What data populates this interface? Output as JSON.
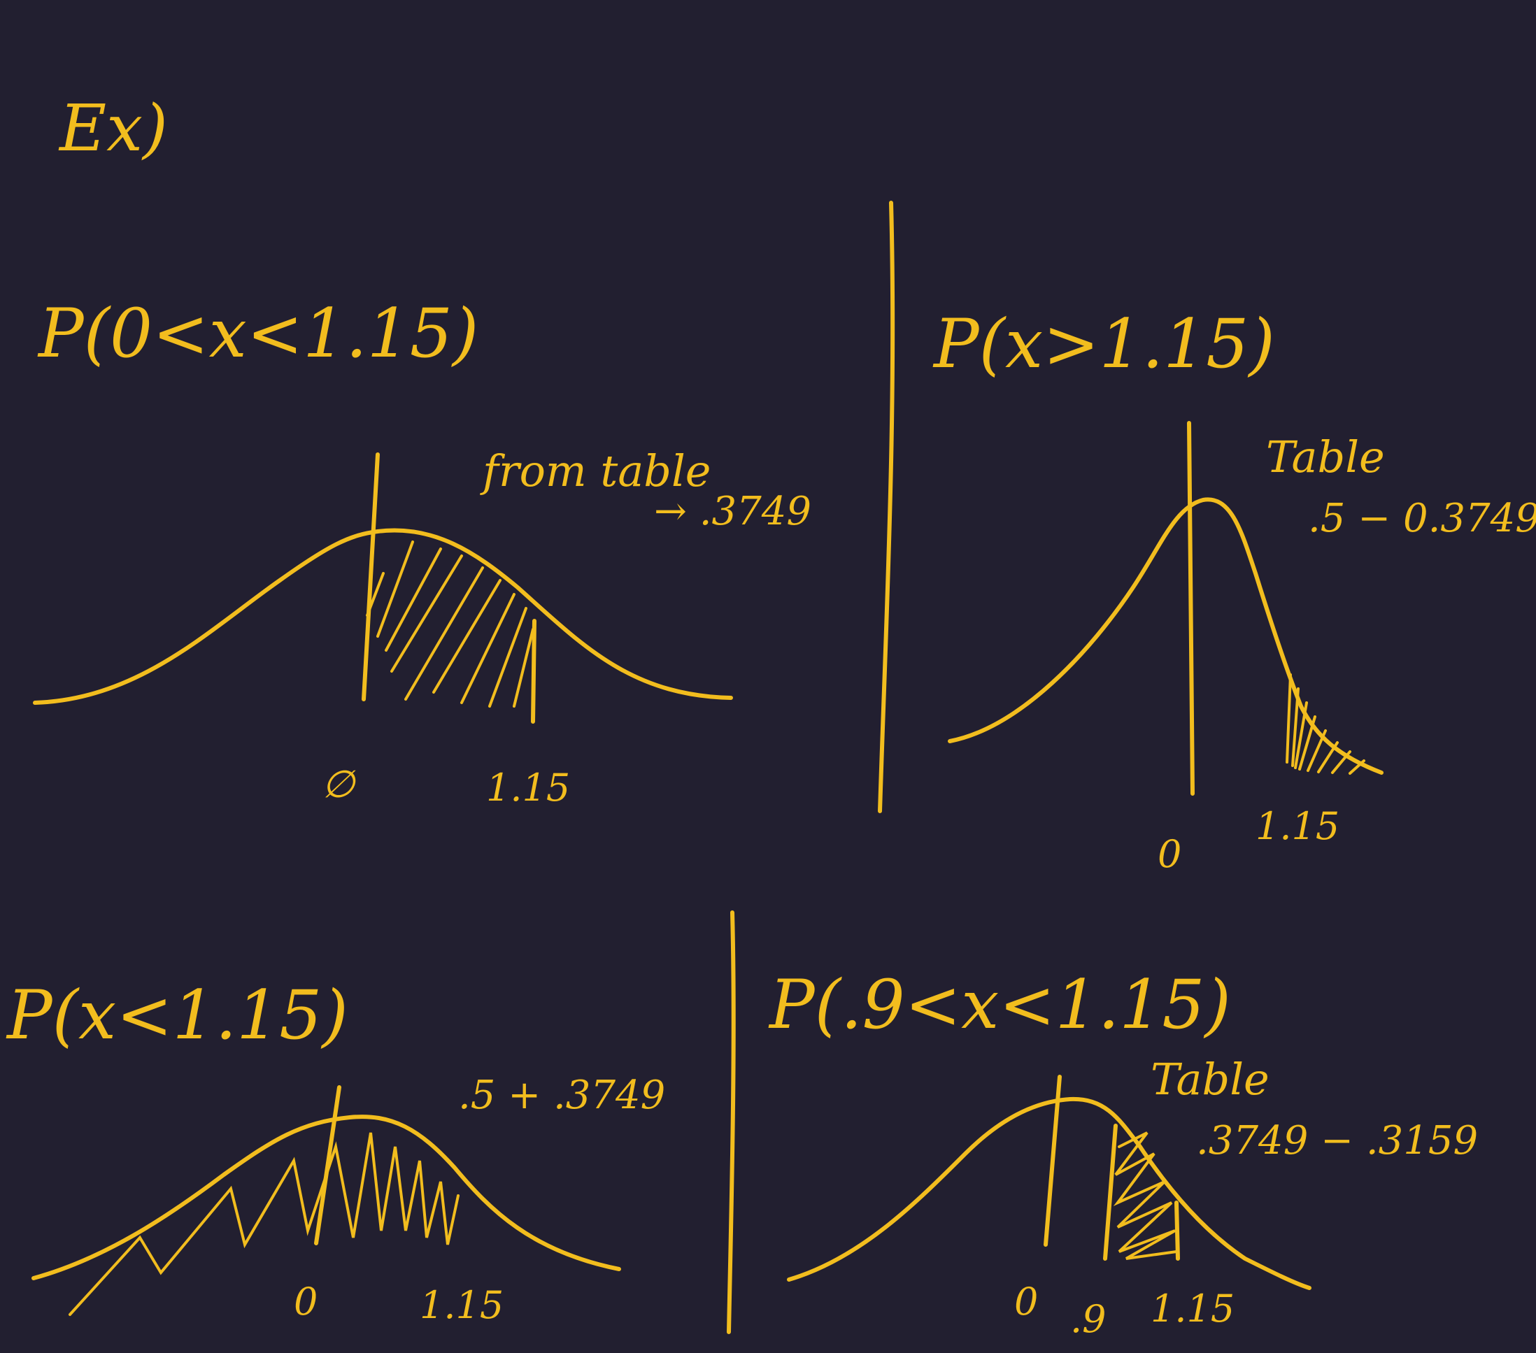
{
  "title": "Ex)",
  "ink_color": "#f2bd1e",
  "background_color": "#221f30",
  "panels": {
    "top_left": {
      "expression": "P(0<x<1.15)",
      "note": "from table",
      "value": "→ .3749",
      "tick_zero": "∅",
      "tick_value": "1.15"
    },
    "top_right": {
      "expression": "P(x>1.15)",
      "note": "Table",
      "value": ".5 − 0.3749",
      "tick_zero": "0",
      "tick_value": "1.15"
    },
    "bottom_left": {
      "expression": "P(x<1.15)",
      "value": ".5 + .3749",
      "tick_zero": "0",
      "tick_value": "1.15"
    },
    "bottom_right": {
      "expression": "P(.9<x<1.15)",
      "note": "Table",
      "value": ".3749 − .3159",
      "tick_zero": "0",
      "tick_mid": ".9",
      "tick_value": "1.15"
    }
  }
}
